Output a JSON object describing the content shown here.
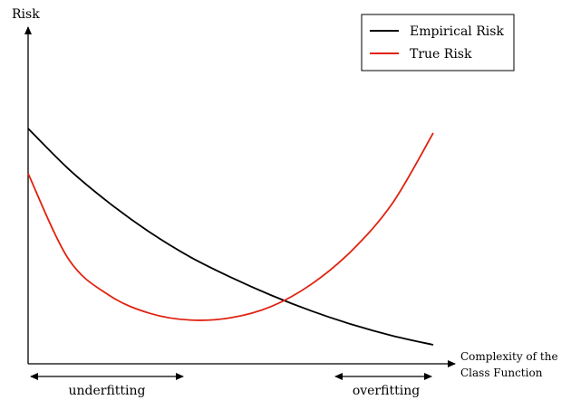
{
  "axes": {
    "y_label": "Risk",
    "x_label_line1": "Complexity of the",
    "x_label_line2": "Class Function"
  },
  "legend": {
    "entries": [
      {
        "label": "Empirical Risk",
        "color": "#000000"
      },
      {
        "label": "True Risk",
        "color": "#e0220f"
      }
    ]
  },
  "regions": {
    "left_label": "underfitting",
    "right_label": "overfitting"
  },
  "chart_data": {
    "type": "line",
    "title": "",
    "xlabel": "Complexity of the Class Function",
    "ylabel": "Risk",
    "grid": false,
    "legend_position": "top-right",
    "series": [
      {
        "name": "Empirical Risk",
        "color": "#000000",
        "x": [
          0,
          1,
          2,
          3,
          4,
          5,
          6,
          7,
          8,
          9,
          10
        ],
        "values": [
          1.0,
          0.82,
          0.67,
          0.54,
          0.43,
          0.34,
          0.26,
          0.19,
          0.13,
          0.08,
          0.04
        ]
      },
      {
        "name": "True Risk",
        "color": "#e0220f",
        "x": [
          0,
          1,
          2,
          3,
          4,
          5,
          6,
          7,
          8,
          9,
          10
        ],
        "values": [
          0.8,
          0.42,
          0.26,
          0.18,
          0.15,
          0.16,
          0.21,
          0.31,
          0.46,
          0.67,
          0.98
        ]
      }
    ]
  }
}
